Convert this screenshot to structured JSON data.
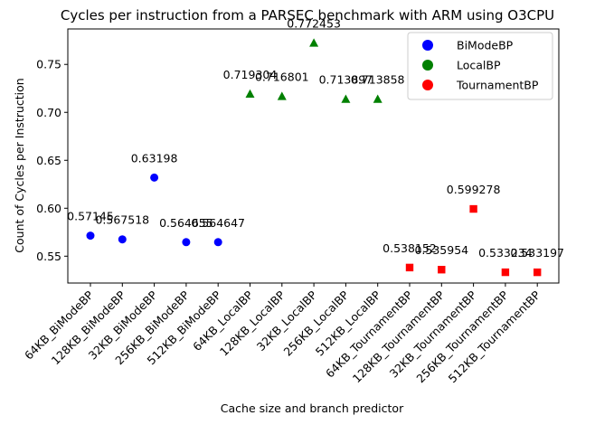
{
  "chart_data": {
    "type": "scatter",
    "title": "Cycles per instruction from a PARSEC benchmark with ARM using O3CPU",
    "xlabel": "Cache size and branch predictor",
    "ylabel": "Count of Cycles per Instruction",
    "ylim": [
      0.522,
      0.787
    ],
    "yticks": [
      0.55,
      0.6,
      0.65,
      0.7,
      0.75
    ],
    "ytick_labels": [
      "0.55",
      "0.60",
      "0.65",
      "0.70",
      "0.75"
    ],
    "grid": false,
    "legend_position": "top-right",
    "categories": [
      "64KB_BiModeBP",
      "128KB_BiModeBP",
      "32KB_BiModeBP",
      "256KB_BiModeBP",
      "512KB_BiModeBP",
      "64KB_LocalBP",
      "128KB_LocalBP",
      "32KB_LocalBP",
      "256KB_LocalBP",
      "512KB_LocalBP",
      "64KB_TournamentBP",
      "128KB_TournamentBP",
      "32KB_TournamentBP",
      "256KB_TournamentBP",
      "512KB_TournamentBP"
    ],
    "series": [
      {
        "name": "BiModeBP",
        "color": "#0000ff",
        "marker": "circle",
        "x_index": [
          0,
          1,
          2,
          3,
          4
        ],
        "values": [
          0.57145,
          0.567518,
          0.63198,
          0.564655,
          0.564647
        ],
        "labels": [
          "0.57145",
          "0.567518",
          "0.63198",
          "0.564655",
          "0.564647"
        ]
      },
      {
        "name": "LocalBP",
        "color": "#008000",
        "marker": "triangle",
        "x_index": [
          5,
          6,
          7,
          8,
          9
        ],
        "values": [
          0.719304,
          0.716801,
          0.772453,
          0.713897,
          0.713858
        ],
        "labels": [
          "0.719304",
          "0.716801",
          "0.772453",
          "0.713897",
          "0.713858"
        ]
      },
      {
        "name": "TournamentBP",
        "color": "#ff0000",
        "marker": "square",
        "x_index": [
          10,
          11,
          12,
          13,
          14
        ],
        "values": [
          0.538152,
          0.535954,
          0.599278,
          0.533234,
          0.533197
        ],
        "labels": [
          "0.538152",
          "0.535954",
          "0.599278",
          "0.533234",
          "0.533197"
        ]
      }
    ]
  }
}
